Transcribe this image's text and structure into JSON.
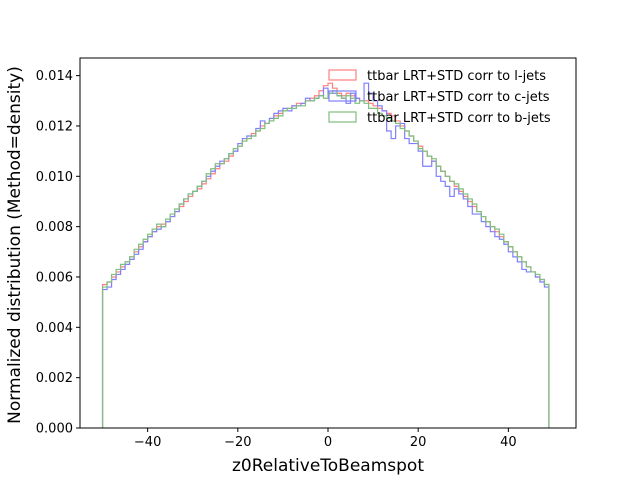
{
  "chart_data": {
    "type": "histogram-step",
    "xlabel": "z0RelativeToBeamspot",
    "ylabel": "Normalized distribution (Method=density)",
    "xlim": [
      -55,
      55
    ],
    "ylim": [
      0,
      0.0147
    ],
    "xticks": [
      -40,
      -20,
      0,
      20,
      40
    ],
    "yticks": [
      0.0,
      0.002,
      0.004,
      0.006,
      0.008,
      0.01,
      0.012,
      0.014
    ],
    "ytick_labels": [
      "0.000",
      "0.002",
      "0.004",
      "0.006",
      "0.008",
      "0.010",
      "0.012",
      "0.014"
    ],
    "grid": false,
    "legend_position": "upper-right",
    "bins": {
      "start": -50,
      "end": 49,
      "count": 99
    },
    "series": [
      {
        "name": "ttbar LRT+STD corr to l-jets",
        "color": "#ff7f7f",
        "values": [
          0.0057,
          0.0058,
          0.006,
          0.0062,
          0.0064,
          0.0066,
          0.0068,
          0.007,
          0.0072,
          0.0074,
          0.0076,
          0.0078,
          0.008,
          0.0081,
          0.0082,
          0.0084,
          0.0086,
          0.0088,
          0.009,
          0.0092,
          0.0094,
          0.0095,
          0.0097,
          0.0099,
          0.0101,
          0.0103,
          0.0105,
          0.0106,
          0.0108,
          0.011,
          0.0112,
          0.0114,
          0.0115,
          0.0117,
          0.0118,
          0.012,
          0.0121,
          0.0122,
          0.0124,
          0.0125,
          0.0126,
          0.0127,
          0.0128,
          0.0129,
          0.0129,
          0.013,
          0.0131,
          0.0132,
          0.0134,
          0.0136,
          0.0137,
          0.0135,
          0.0133,
          0.0132,
          0.0133,
          0.0132,
          0.0131,
          0.013,
          0.013,
          0.0129,
          0.0128,
          0.0127,
          0.0126,
          0.0125,
          0.0124,
          0.0122,
          0.012,
          0.0118,
          0.0116,
          0.0114,
          0.0112,
          0.011,
          0.0108,
          0.0106,
          0.0104,
          0.0102,
          0.01,
          0.0098,
          0.0096,
          0.0094,
          0.0092,
          0.009,
          0.0088,
          0.0086,
          0.0084,
          0.0082,
          0.008,
          0.0078,
          0.0076,
          0.0074,
          0.0072,
          0.007,
          0.0068,
          0.0066,
          0.0064,
          0.0062,
          0.006,
          0.0059,
          0.0057
        ]
      },
      {
        "name": "ttbar LRT+STD corr to c-jets",
        "color": "#7f7fff",
        "values": [
          0.0055,
          0.0056,
          0.0059,
          0.0061,
          0.0063,
          0.0065,
          0.0067,
          0.0069,
          0.0071,
          0.0074,
          0.0076,
          0.0078,
          0.0079,
          0.008,
          0.0082,
          0.0084,
          0.0086,
          0.0089,
          0.0091,
          0.0093,
          0.0094,
          0.0096,
          0.0098,
          0.01,
          0.0102,
          0.0104,
          0.0106,
          0.0107,
          0.0109,
          0.011,
          0.0113,
          0.0115,
          0.0116,
          0.0116,
          0.0119,
          0.0122,
          0.0121,
          0.0123,
          0.0125,
          0.0126,
          0.0127,
          0.0126,
          0.0128,
          0.0128,
          0.0129,
          0.0131,
          0.013,
          0.0131,
          0.0132,
          0.0135,
          0.0133,
          0.0133,
          0.0132,
          0.0131,
          0.0129,
          0.0133,
          0.0131,
          0.013,
          0.0137,
          0.0133,
          0.013,
          0.0128,
          0.0126,
          0.0118,
          0.0115,
          0.012,
          0.0121,
          0.0115,
          0.0113,
          0.0113,
          0.011,
          0.0104,
          0.0104,
          0.0106,
          0.01,
          0.0098,
          0.0096,
          0.0092,
          0.0095,
          0.0093,
          0.0091,
          0.0088,
          0.0085,
          0.0085,
          0.0082,
          0.008,
          0.0078,
          0.0076,
          0.0075,
          0.0073,
          0.007,
          0.0068,
          0.0066,
          0.0063,
          0.0062,
          0.0062,
          0.006,
          0.0058,
          0.0056
        ]
      },
      {
        "name": "ttbar LRT+STD corr to b-jets",
        "color": "#7fbf7f",
        "values": [
          0.0056,
          0.0058,
          0.0061,
          0.0063,
          0.0065,
          0.0066,
          0.0068,
          0.0071,
          0.0073,
          0.0075,
          0.0077,
          0.0079,
          0.0081,
          0.008,
          0.0083,
          0.0085,
          0.0087,
          0.0089,
          0.0091,
          0.0093,
          0.0094,
          0.0096,
          0.0098,
          0.0101,
          0.0103,
          0.0105,
          0.0105,
          0.0107,
          0.0109,
          0.0111,
          0.0112,
          0.0114,
          0.0115,
          0.0116,
          0.0118,
          0.0119,
          0.0121,
          0.0122,
          0.0123,
          0.0124,
          0.0126,
          0.0127,
          0.0127,
          0.0128,
          0.0128,
          0.013,
          0.013,
          0.0131,
          0.0132,
          0.0131,
          0.0133,
          0.0134,
          0.0132,
          0.0131,
          0.0132,
          0.0131,
          0.0129,
          0.013,
          0.0129,
          0.0127,
          0.0127,
          0.0125,
          0.0124,
          0.0123,
          0.0122,
          0.0121,
          0.0119,
          0.0118,
          0.0116,
          0.0114,
          0.0111,
          0.011,
          0.0108,
          0.0107,
          0.0104,
          0.0102,
          0.01,
          0.0098,
          0.0097,
          0.0095,
          0.0093,
          0.0091,
          0.0089,
          0.0086,
          0.0084,
          0.0082,
          0.008,
          0.0079,
          0.0077,
          0.0074,
          0.0072,
          0.007,
          0.0068,
          0.0066,
          0.0064,
          0.0062,
          0.0061,
          0.0059,
          0.0057
        ]
      }
    ]
  }
}
